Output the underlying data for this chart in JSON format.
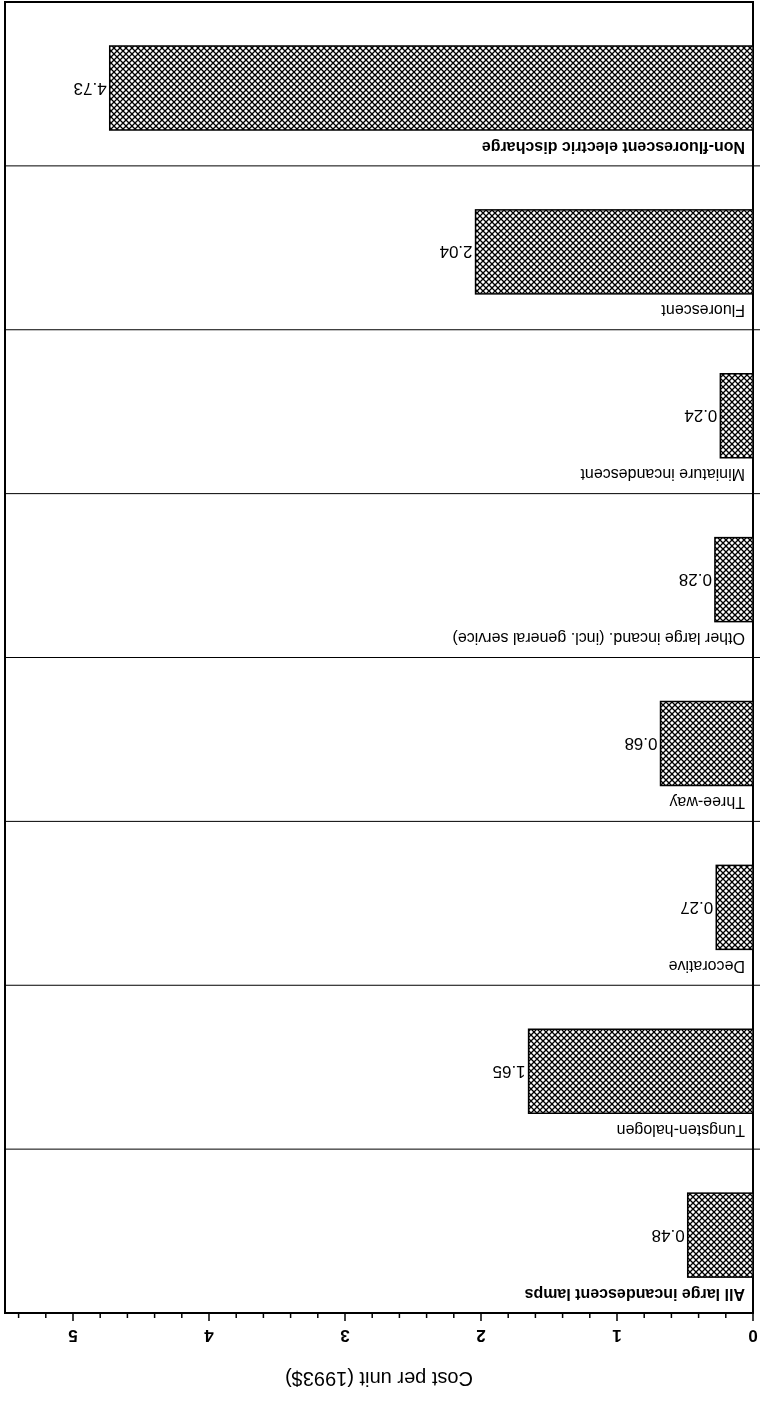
{
  "chart_data": {
    "type": "bar",
    "orientation": "horizontal",
    "xlabel": "Cost per unit (1993$)",
    "categories": [
      "Non-fluorescent electric discharge",
      "Fluorescent",
      "Miniature incandescent",
      "Other large incand. (incl. general service)",
      "Three-way",
      "Decorative",
      "Tungsten-halogen",
      "All large incandescent lamps"
    ],
    "values": [
      4.73,
      2.04,
      0.24,
      0.28,
      0.68,
      0.27,
      1.65,
      0.48
    ],
    "color": "#000000",
    "xlim": [
      5.5,
      0
    ],
    "xticks": [
      0,
      {
        "value": 0.2,
        "label": null
      },
      {
        "value": 0.4,
        "label": null
      },
      {
        "value": 0.6,
        "label": null
      },
      {
        "value": 0.8,
        "label": null
      },
      1,
      {
        "value": 1.2,
        "label": null
      },
      {
        "value": 1.4,
        "label": null
      },
      {
        "value": 1.6,
        "label": null
      },
      {
        "value": 1.8,
        "label": null
      },
      2,
      {
        "value": 2.2,
        "label": null
      },
      {
        "value": 2.4,
        "label": null
      },
      {
        "value": 2.6,
        "label": null
      },
      {
        "value": 2.8,
        "label": null
      },
      3,
      {
        "value": 3.2,
        "label": null
      },
      {
        "value": 3.4,
        "label": null
      },
      {
        "value": 3.6,
        "label": null
      },
      {
        "value": 3.8,
        "label": null
      },
      4,
      {
        "value": 4.2,
        "label": null
      },
      {
        "value": 4.4,
        "label": null
      },
      {
        "value": 4.6,
        "label": null
      },
      {
        "value": 4.8,
        "label": null
      },
      5,
      {
        "value": 5.2,
        "label": null
      },
      {
        "value": 5.4,
        "label": null
      }
    ],
    "data_labels": true,
    "grid": false
  }
}
